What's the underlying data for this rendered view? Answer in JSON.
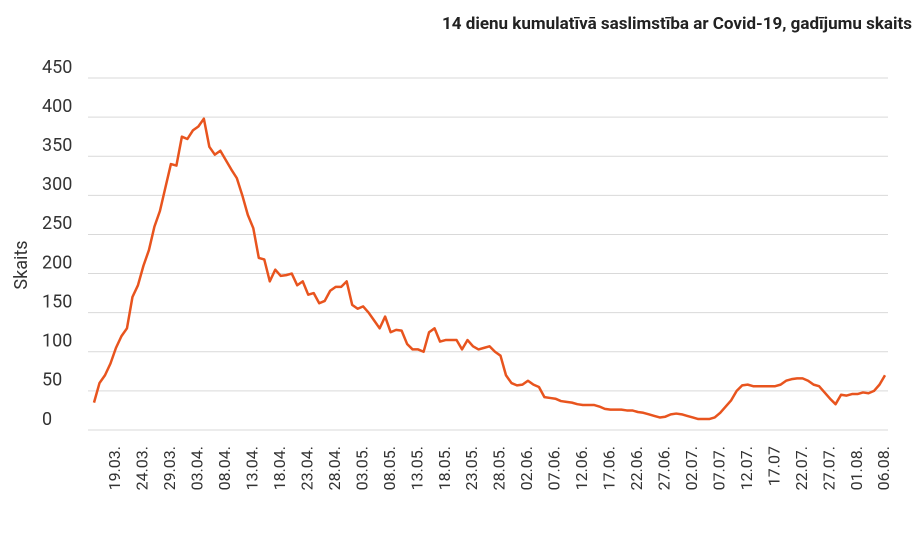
{
  "chart_data": {
    "type": "line",
    "title": "14 dienu kumulatīvā saslimstība ar Covid-19, gadījumu skaits",
    "y_label": "Skaits",
    "categories": [
      null,
      null,
      null,
      null,
      "19.03.",
      null,
      null,
      null,
      null,
      "24.03.",
      null,
      null,
      null,
      null,
      "29.03.",
      null,
      null,
      null,
      null,
      "03.04.",
      null,
      null,
      null,
      null,
      "08.04.",
      null,
      null,
      null,
      null,
      "13.04.",
      null,
      null,
      null,
      null,
      "18.04.",
      null,
      null,
      null,
      null,
      "23.04.",
      null,
      null,
      null,
      null,
      "28.04.",
      null,
      null,
      null,
      null,
      "03.05.",
      null,
      null,
      null,
      null,
      "08.05.",
      null,
      null,
      null,
      null,
      "13.05.",
      null,
      null,
      null,
      null,
      "18.05.",
      null,
      null,
      null,
      null,
      "23.05.",
      null,
      null,
      null,
      null,
      "28.05.",
      null,
      null,
      null,
      null,
      "02.06.",
      null,
      null,
      null,
      null,
      "07.06.",
      null,
      null,
      null,
      null,
      "12.06.",
      null,
      null,
      null,
      null,
      "17.06.",
      null,
      null,
      null,
      null,
      "22.06.",
      null,
      null,
      null,
      null,
      "27.06.",
      null,
      null,
      null,
      null,
      "02.07.",
      null,
      null,
      null,
      null,
      "07.07.",
      null,
      null,
      null,
      null,
      "12.07.",
      null,
      null,
      null,
      null,
      "17.07",
      null,
      null,
      null,
      null,
      "22.07.",
      null,
      null,
      null,
      null,
      "27.07.",
      null,
      null,
      null,
      null,
      "01.08.",
      null,
      null,
      null,
      null,
      "06.08."
    ],
    "values": [
      35,
      60,
      70,
      85,
      105,
      120,
      130,
      170,
      185,
      210,
      230,
      260,
      280,
      310,
      340,
      338,
      375,
      372,
      383,
      388,
      398,
      362,
      352,
      357,
      345,
      333,
      322,
      300,
      275,
      258,
      220,
      218,
      190,
      205,
      197,
      198,
      200,
      185,
      190,
      173,
      175,
      162,
      165,
      178,
      183,
      183,
      190,
      160,
      155,
      158,
      150,
      140,
      130,
      145,
      125,
      128,
      127,
      110,
      103,
      103,
      100,
      125,
      130,
      113,
      115,
      115,
      115,
      103,
      115,
      107,
      103,
      105,
      107,
      100,
      95,
      70,
      60,
      57,
      58,
      63,
      58,
      55,
      42,
      41,
      40,
      37,
      36,
      35,
      33,
      32,
      32,
      32,
      30,
      27,
      26,
      26,
      26,
      25,
      25,
      23,
      22,
      20,
      18,
      16,
      17,
      20,
      21,
      20,
      18,
      16,
      14,
      14,
      14,
      16,
      22,
      30,
      38,
      50,
      57,
      58,
      56,
      56,
      56,
      56,
      56,
      58,
      63,
      65,
      66,
      66,
      63,
      58,
      56,
      48,
      40,
      33,
      45,
      44,
      46,
      46,
      48,
      47,
      50,
      58,
      70
    ],
    "color": "#e8541e",
    "ylim": [
      0,
      450
    ],
    "yticks": [
      0,
      50,
      100,
      150,
      200,
      250,
      300,
      350,
      400,
      450
    ],
    "grid": true
  }
}
